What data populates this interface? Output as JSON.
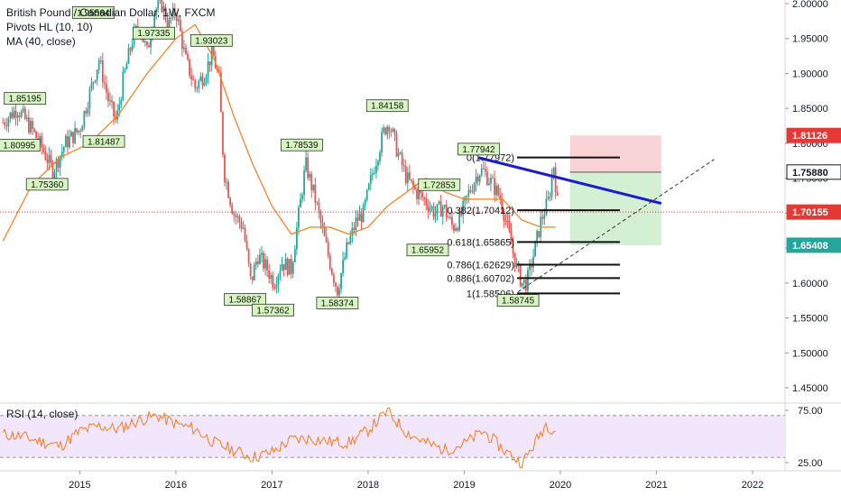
{
  "header": {
    "symbol_title": "British Pound / Canadian Dollar, 1W, FXCM",
    "indicator_pivots": "Pivots HL (10, 10)",
    "indicator_ma": "MA (40, close)",
    "indicator_rsi": "RSI (14, close)"
  },
  "colors": {
    "bull": "#26a69a",
    "bear": "#ef5350",
    "ma": "#f57c1f",
    "rsi": "#f57c1f",
    "trendline": "#1c1cc8",
    "stop_zone": "#f8c9cc",
    "target_zone": "#c8ebc9",
    "pivot_fill": "#d7f5c0",
    "current_price": "#e53935",
    "green_badge": "#26a69a"
  },
  "chart_data": [
    {
      "type": "candlestick",
      "title": "British Pound / Canadian Dollar, 1W, FXCM",
      "x_ticks": [
        "2015",
        "2016",
        "2017",
        "2018",
        "2019",
        "2020",
        "2021",
        "2022"
      ],
      "y_ticks": [
        "2.00000",
        "1.95000",
        "1.90000",
        "1.85000",
        "1.80000",
        "1.75000",
        "1.70000",
        "1.65000",
        "1.60000",
        "1.55000",
        "1.50000",
        "1.45000"
      ],
      "ylim": [
        1.42,
        2.005
      ],
      "xlim": [
        2014.17,
        2022.92
      ],
      "series_path": [
        [
          2014.2,
          1.83
        ],
        [
          2014.35,
          1.85
        ],
        [
          2014.5,
          1.82
        ],
        [
          2014.62,
          1.79
        ],
        [
          2014.72,
          1.76
        ],
        [
          2014.85,
          1.8
        ],
        [
          2015.0,
          1.82
        ],
        [
          2015.1,
          1.87
        ],
        [
          2015.2,
          1.92
        ],
        [
          2015.3,
          1.86
        ],
        [
          2015.38,
          1.83
        ],
        [
          2015.45,
          1.89
        ],
        [
          2015.55,
          1.95
        ],
        [
          2015.62,
          1.97
        ],
        [
          2015.7,
          1.93
        ],
        [
          2015.78,
          1.99
        ],
        [
          2015.85,
          2.0
        ],
        [
          2015.92,
          1.97
        ],
        [
          2016.0,
          1.99
        ],
        [
          2016.1,
          1.92
        ],
        [
          2016.2,
          1.88
        ],
        [
          2016.3,
          1.9
        ],
        [
          2016.38,
          1.93
        ],
        [
          2016.45,
          1.89
        ],
        [
          2016.5,
          1.76
        ],
        [
          2016.6,
          1.7
        ],
        [
          2016.7,
          1.68
        ],
        [
          2016.78,
          1.6
        ],
        [
          2016.85,
          1.64
        ],
        [
          2016.95,
          1.62
        ],
        [
          2017.02,
          1.6
        ],
        [
          2017.1,
          1.63
        ],
        [
          2017.2,
          1.62
        ],
        [
          2017.28,
          1.7
        ],
        [
          2017.35,
          1.77
        ],
        [
          2017.45,
          1.72
        ],
        [
          2017.55,
          1.66
        ],
        [
          2017.62,
          1.62
        ],
        [
          2017.68,
          1.59
        ],
        [
          2017.78,
          1.65
        ],
        [
          2017.88,
          1.69
        ],
        [
          2017.95,
          1.7
        ],
        [
          2018.05,
          1.76
        ],
        [
          2018.17,
          1.82
        ],
        [
          2018.22,
          1.83
        ],
        [
          2018.3,
          1.79
        ],
        [
          2018.4,
          1.75
        ],
        [
          2018.5,
          1.73
        ],
        [
          2018.58,
          1.72
        ],
        [
          2018.7,
          1.7
        ],
        [
          2018.78,
          1.71
        ],
        [
          2018.88,
          1.68
        ],
        [
          2018.95,
          1.69
        ],
        [
          2019.05,
          1.73
        ],
        [
          2019.15,
          1.76
        ],
        [
          2019.2,
          1.76
        ],
        [
          2019.3,
          1.74
        ],
        [
          2019.38,
          1.72
        ],
        [
          2019.48,
          1.66
        ],
        [
          2019.55,
          1.62
        ],
        [
          2019.6,
          1.6
        ],
        [
          2019.65,
          1.6
        ],
        [
          2019.72,
          1.64
        ],
        [
          2019.8,
          1.69
        ],
        [
          2019.88,
          1.72
        ],
        [
          2019.93,
          1.77
        ],
        [
          2019.98,
          1.7
        ]
      ],
      "ma_path": [
        [
          2014.2,
          1.66
        ],
        [
          2014.5,
          1.74
        ],
        [
          2014.8,
          1.78
        ],
        [
          2015.1,
          1.8
        ],
        [
          2015.4,
          1.84
        ],
        [
          2015.7,
          1.9
        ],
        [
          2016.0,
          1.95
        ],
        [
          2016.2,
          1.97
        ],
        [
          2016.4,
          1.92
        ],
        [
          2016.6,
          1.84
        ],
        [
          2016.8,
          1.77
        ],
        [
          2017.0,
          1.71
        ],
        [
          2017.2,
          1.67
        ],
        [
          2017.4,
          1.68
        ],
        [
          2017.6,
          1.68
        ],
        [
          2017.8,
          1.67
        ],
        [
          2018.0,
          1.68
        ],
        [
          2018.2,
          1.71
        ],
        [
          2018.4,
          1.73
        ],
        [
          2018.6,
          1.75
        ],
        [
          2018.8,
          1.73
        ],
        [
          2019.0,
          1.72
        ],
        [
          2019.2,
          1.72
        ],
        [
          2019.4,
          1.72
        ],
        [
          2019.6,
          1.69
        ],
        [
          2019.8,
          1.68
        ],
        [
          2019.95,
          1.68
        ]
      ],
      "pivots": [
        {
          "label": "1.95564",
          "x": 2015.14,
          "y": 1.975,
          "side": "above"
        },
        {
          "label": "1.97335",
          "x": 2015.77,
          "y": 1.97,
          "side": "below"
        },
        {
          "label": "1.93023",
          "x": 2016.37,
          "y": 1.935,
          "side": "above"
        },
        {
          "label": "1.85195",
          "x": 2014.43,
          "y": 1.852,
          "side": "above"
        },
        {
          "label": "1.80995",
          "x": 2014.37,
          "y": 1.8095,
          "side": "below"
        },
        {
          "label": "1.81487",
          "x": 2015.25,
          "y": 1.815,
          "side": "below"
        },
        {
          "label": "1.75360",
          "x": 2014.66,
          "y": 1.7536,
          "side": "below"
        },
        {
          "label": "1.84158",
          "x": 2018.2,
          "y": 1.8416,
          "side": "above"
        },
        {
          "label": "1.78539",
          "x": 2017.31,
          "y": 1.7854,
          "side": "above"
        },
        {
          "label": "1.72853",
          "x": 2018.74,
          "y": 1.7285,
          "side": "above"
        },
        {
          "label": "1.77942",
          "x": 2019.15,
          "y": 1.7794,
          "side": "above"
        },
        {
          "label": "1.65952",
          "x": 2018.62,
          "y": 1.6595,
          "side": "below"
        },
        {
          "label": "1.58867",
          "x": 2016.72,
          "y": 1.5887,
          "side": "below"
        },
        {
          "label": "1.57362",
          "x": 2017.01,
          "y": 1.5736,
          "side": "below"
        },
        {
          "label": "1.58374",
          "x": 2017.68,
          "y": 1.5837,
          "side": "below"
        },
        {
          "label": "1.58745",
          "x": 2019.56,
          "y": 1.5874,
          "side": "below"
        }
      ],
      "fib_levels": [
        {
          "label": "0(1.77972)",
          "value": 1.77972
        },
        {
          "label": "0.382(1.70412)",
          "value": 1.70412
        },
        {
          "label": "0.618(1.65865)",
          "value": 1.65865
        },
        {
          "label": "0.786(1.62629)",
          "value": 1.62629
        },
        {
          "label": "0.886(1.60702)",
          "value": 1.60702
        },
        {
          "label": "1(1.58506)",
          "value": 1.58506
        }
      ],
      "trendline": {
        "x1": 2019.15,
        "y1": 1.7794,
        "x2": 2021.05,
        "y2": 1.714
      },
      "diagonal": {
        "x1": 2019.56,
        "y1": 1.5874,
        "x2": 2021.6,
        "y2": 1.777
      },
      "position": {
        "x_start": 2020.1,
        "x_end": 2021.05,
        "entry": 1.7588,
        "stop": 1.81126,
        "target": 1.65408
      },
      "price_badges": [
        {
          "label": "1.81126",
          "value": 1.81126,
          "kind": "red"
        },
        {
          "label": "1.75880",
          "value": 1.7588,
          "kind": "white"
        },
        {
          "label": "1.70155",
          "value": 1.70155,
          "kind": "red"
        },
        {
          "label": "1.65408",
          "value": 1.65408,
          "kind": "green"
        }
      ],
      "current_price": 1.70155
    },
    {
      "type": "line",
      "title": "RSI (14, close)",
      "y_ticks": [
        "75.00",
        "25.00"
      ],
      "ylim": [
        20,
        82
      ],
      "bands": [
        70,
        30
      ],
      "series": [
        {
          "name": "RSI (14, close)",
          "x": [
            2014.2,
            2014.4,
            2014.6,
            2014.8,
            2015.0,
            2015.2,
            2015.4,
            2015.6,
            2015.8,
            2016.0,
            2016.2,
            2016.4,
            2016.6,
            2016.8,
            2017.0,
            2017.2,
            2017.4,
            2017.6,
            2017.8,
            2018.0,
            2018.2,
            2018.4,
            2018.6,
            2018.8,
            2019.0,
            2019.2,
            2019.4,
            2019.6,
            2019.7,
            2019.85,
            2019.95
          ],
          "values": [
            52,
            50,
            45,
            41,
            55,
            60,
            57,
            65,
            70,
            62,
            57,
            44,
            37,
            30,
            35,
            47,
            48,
            45,
            44,
            56,
            74,
            54,
            44,
            37,
            43,
            55,
            38,
            24,
            38,
            62,
            55
          ]
        }
      ]
    }
  ]
}
